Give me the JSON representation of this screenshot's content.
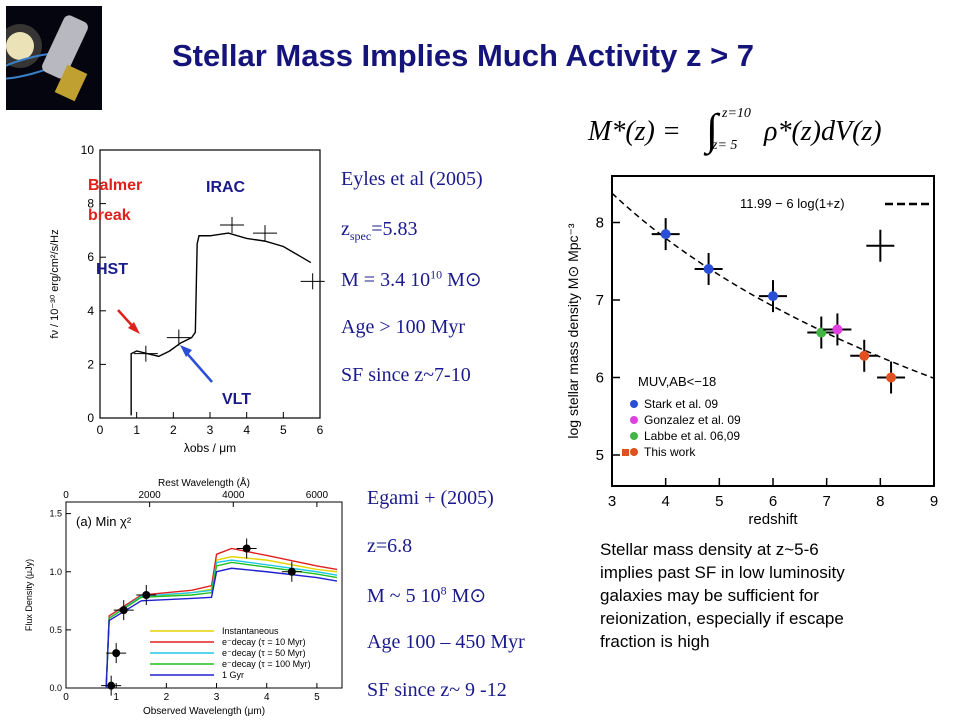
{
  "slide": {
    "title": "Stellar Mass Implies Much Activity z > 7",
    "formula": {
      "lhs": "M*(z) =",
      "upper": "z=10",
      "lower": "z= 5",
      "integrand": "ρ*(z)dV(z)"
    },
    "eyles": {
      "line1": "Eyles et al (2005)",
      "line2_main": "z",
      "line2_sub": "spec",
      "line2_rest": "=5.83",
      "line3_main": "M = 3.4 10",
      "line3_sup": "10",
      "line3_rest": " M⊙",
      "line4": "Age > 100 Myr",
      "line5": "SF since z~7-10"
    },
    "egami": {
      "line1": "Egami + (2005)",
      "line2": "z=6.8",
      "line3_main": " M ~ 5 10",
      "line3_sup": "8",
      "line3_rest": " M⊙",
      "line4": "Age 100 – 450 Myr",
      "line5": "SF since z~ 9 -12"
    },
    "caption": [
      "Stellar mass density at z~5-6",
      "implies past SF in low luminosity",
      "galaxies may be sufficient for",
      "reionization, especially if escape",
      "fraction is high"
    ]
  },
  "chart_data": [
    {
      "type": "line",
      "id": "sed_eyles",
      "xlabel": "λobs / μm",
      "ylabel": "fν / 10⁻³⁰ erg/cm²/s/Hz",
      "xlim": [
        0,
        6
      ],
      "ylim": [
        0,
        10
      ],
      "x_ticks": [
        "0",
        "1",
        "2",
        "3",
        "4",
        "5",
        "6"
      ],
      "y_ticks": [
        "0",
        "2",
        "4",
        "6",
        "8",
        "10"
      ],
      "annotations": [
        "Balmer",
        "break",
        "IRAC",
        "HST",
        "VLT"
      ],
      "annotation_colors": {
        "balmer": "#e0201a",
        "irac": "#1a1a8c",
        "hst": "#1a1a8c",
        "vlt": "#1a1a8c"
      },
      "series": [
        {
          "values": [
            [
              0.85,
              0.1
            ],
            [
              0.85,
              2.4
            ],
            [
              1.0,
              2.5
            ],
            [
              1.3,
              2.4
            ],
            [
              1.6,
              2.3
            ],
            [
              1.9,
              2.5
            ],
            [
              2.2,
              2.8
            ],
            [
              2.5,
              3.0
            ],
            [
              2.6,
              3.2
            ],
            [
              2.65,
              6.5
            ],
            [
              2.7,
              6.8
            ],
            [
              3.0,
              6.8
            ],
            [
              3.5,
              6.9
            ],
            [
              4.0,
              6.7
            ],
            [
              4.5,
              6.6
            ],
            [
              5.0,
              6.4
            ],
            [
              5.5,
              6.0
            ],
            [
              5.75,
              5.8
            ]
          ]
        }
      ],
      "points": [
        [
          1.25,
          2.4
        ],
        [
          2.15,
          3.0
        ],
        [
          3.6,
          7.2
        ],
        [
          4.5,
          6.9
        ],
        [
          5.8,
          5.1
        ]
      ]
    },
    {
      "type": "scatter",
      "id": "mass_density",
      "xlabel": "redshift",
      "ylabel": "log stellar mass density M⊙ Mpc⁻³",
      "xlim": [
        3,
        9
      ],
      "ylim": [
        4.6,
        8.6
      ],
      "x_ticks": [
        "3",
        "4",
        "5",
        "6",
        "7",
        "8",
        "9"
      ],
      "y_ticks": [
        "5",
        "6",
        "7",
        "8"
      ],
      "fit_label": "11.99 − 6 log(1+z)",
      "legend_title": "MUV,AB<−18",
      "legend": [
        {
          "name": "Stark et al. 09",
          "color": "#2a4fd6"
        },
        {
          "name": "Gonzalez et al. 09",
          "color": "#e040e0"
        },
        {
          "name": "Labbe et al. 06,09",
          "color": "#44b444"
        },
        {
          "name": "This work",
          "color": "#e05020"
        }
      ],
      "points": [
        {
          "x": 4.0,
          "y": 7.85,
          "series": "Stark et al. 09"
        },
        {
          "x": 4.8,
          "y": 7.4,
          "series": "Stark et al. 09"
        },
        {
          "x": 6.0,
          "y": 7.05,
          "series": "Stark et al. 09"
        },
        {
          "x": 6.9,
          "y": 6.58,
          "series": "Labbe et al. 06,09"
        },
        {
          "x": 7.2,
          "y": 6.62,
          "series": "Gonzalez et al. 09"
        },
        {
          "x": 7.7,
          "y": 6.28,
          "series": "This work"
        },
        {
          "x": 8.2,
          "y": 6.0,
          "series": "This work"
        },
        {
          "x": 8.0,
          "y": 7.7,
          "series": "upper"
        }
      ]
    },
    {
      "type": "line",
      "id": "sed_egami",
      "title_axis_top": "Rest Wavelength (Å)",
      "xlabel": "Observed Wavelength (μm)",
      "ylabel": "Flux Density (μJy)",
      "panel_label": "(a)  Min χ²",
      "xlim": [
        0,
        5.5
      ],
      "ylim": [
        0,
        1.6
      ],
      "x_ticks": [
        "0",
        "1",
        "2",
        "3",
        "4",
        "5"
      ],
      "x_top_ticks": [
        "0",
        "2000",
        "4000",
        "6000"
      ],
      "y_ticks": [
        "0.0",
        "0.5",
        "1.0",
        "1.5"
      ],
      "legend": [
        {
          "name": "Instantaneous",
          "color": "#e6d400"
        },
        {
          "name": "e⁻decay (τ = 10 Myr)",
          "color": "#e02020"
        },
        {
          "name": "e⁻decay (τ = 50 Myr)",
          "color": "#20c8e8"
        },
        {
          "name": "e⁻decay (τ = 100 Myr)",
          "color": "#20c020"
        },
        {
          "name": "1 Gyr",
          "color": "#2020d0"
        }
      ],
      "series": [
        {
          "name": "Instantaneous",
          "values": [
            [
              0.8,
              0
            ],
            [
              0.86,
              0.6
            ],
            [
              1.5,
              0.78
            ],
            [
              2.5,
              0.82
            ],
            [
              2.9,
              0.85
            ],
            [
              3.0,
              1.1
            ],
            [
              3.3,
              1.13
            ],
            [
              4,
              1.1
            ],
            [
              5,
              1.02
            ],
            [
              5.4,
              1.0
            ]
          ]
        },
        {
          "name": "e⁻decay (τ = 10 Myr)",
          "values": [
            [
              0.8,
              0
            ],
            [
              0.86,
              0.62
            ],
            [
              1.5,
              0.8
            ],
            [
              2.5,
              0.84
            ],
            [
              2.9,
              0.88
            ],
            [
              3.0,
              1.15
            ],
            [
              3.3,
              1.2
            ],
            [
              4,
              1.14
            ],
            [
              5,
              1.05
            ],
            [
              5.4,
              1.02
            ]
          ]
        },
        {
          "name": "e⁻decay (τ = 50 Myr)",
          "values": [
            [
              0.8,
              0
            ],
            [
              0.86,
              0.6
            ],
            [
              1.5,
              0.79
            ],
            [
              2.5,
              0.82
            ],
            [
              2.9,
              0.84
            ],
            [
              3.0,
              1.08
            ],
            [
              3.3,
              1.1
            ],
            [
              4,
              1.06
            ],
            [
              5,
              1.0
            ],
            [
              5.4,
              0.97
            ]
          ]
        },
        {
          "name": "e⁻decay (τ = 100 Myr)",
          "values": [
            [
              0.8,
              0
            ],
            [
              0.86,
              0.6
            ],
            [
              1.5,
              0.78
            ],
            [
              2.5,
              0.8
            ],
            [
              2.9,
              0.82
            ],
            [
              3.0,
              1.05
            ],
            [
              3.3,
              1.08
            ],
            [
              4,
              1.04
            ],
            [
              5,
              0.98
            ],
            [
              5.4,
              0.95
            ]
          ]
        },
        {
          "name": "1 Gyr",
          "values": [
            [
              0.8,
              0
            ],
            [
              0.86,
              0.58
            ],
            [
              1.5,
              0.75
            ],
            [
              2.5,
              0.77
            ],
            [
              2.9,
              0.78
            ],
            [
              3.0,
              1.0
            ],
            [
              3.3,
              1.03
            ],
            [
              4,
              1.0
            ],
            [
              5,
              0.95
            ],
            [
              5.4,
              0.92
            ]
          ]
        }
      ],
      "points": [
        [
          0.9,
          0.02
        ],
        [
          1.0,
          0.3
        ],
        [
          1.15,
          0.67
        ],
        [
          1.6,
          0.8
        ],
        [
          3.6,
          1.2
        ],
        [
          4.5,
          1.0
        ]
      ]
    }
  ]
}
